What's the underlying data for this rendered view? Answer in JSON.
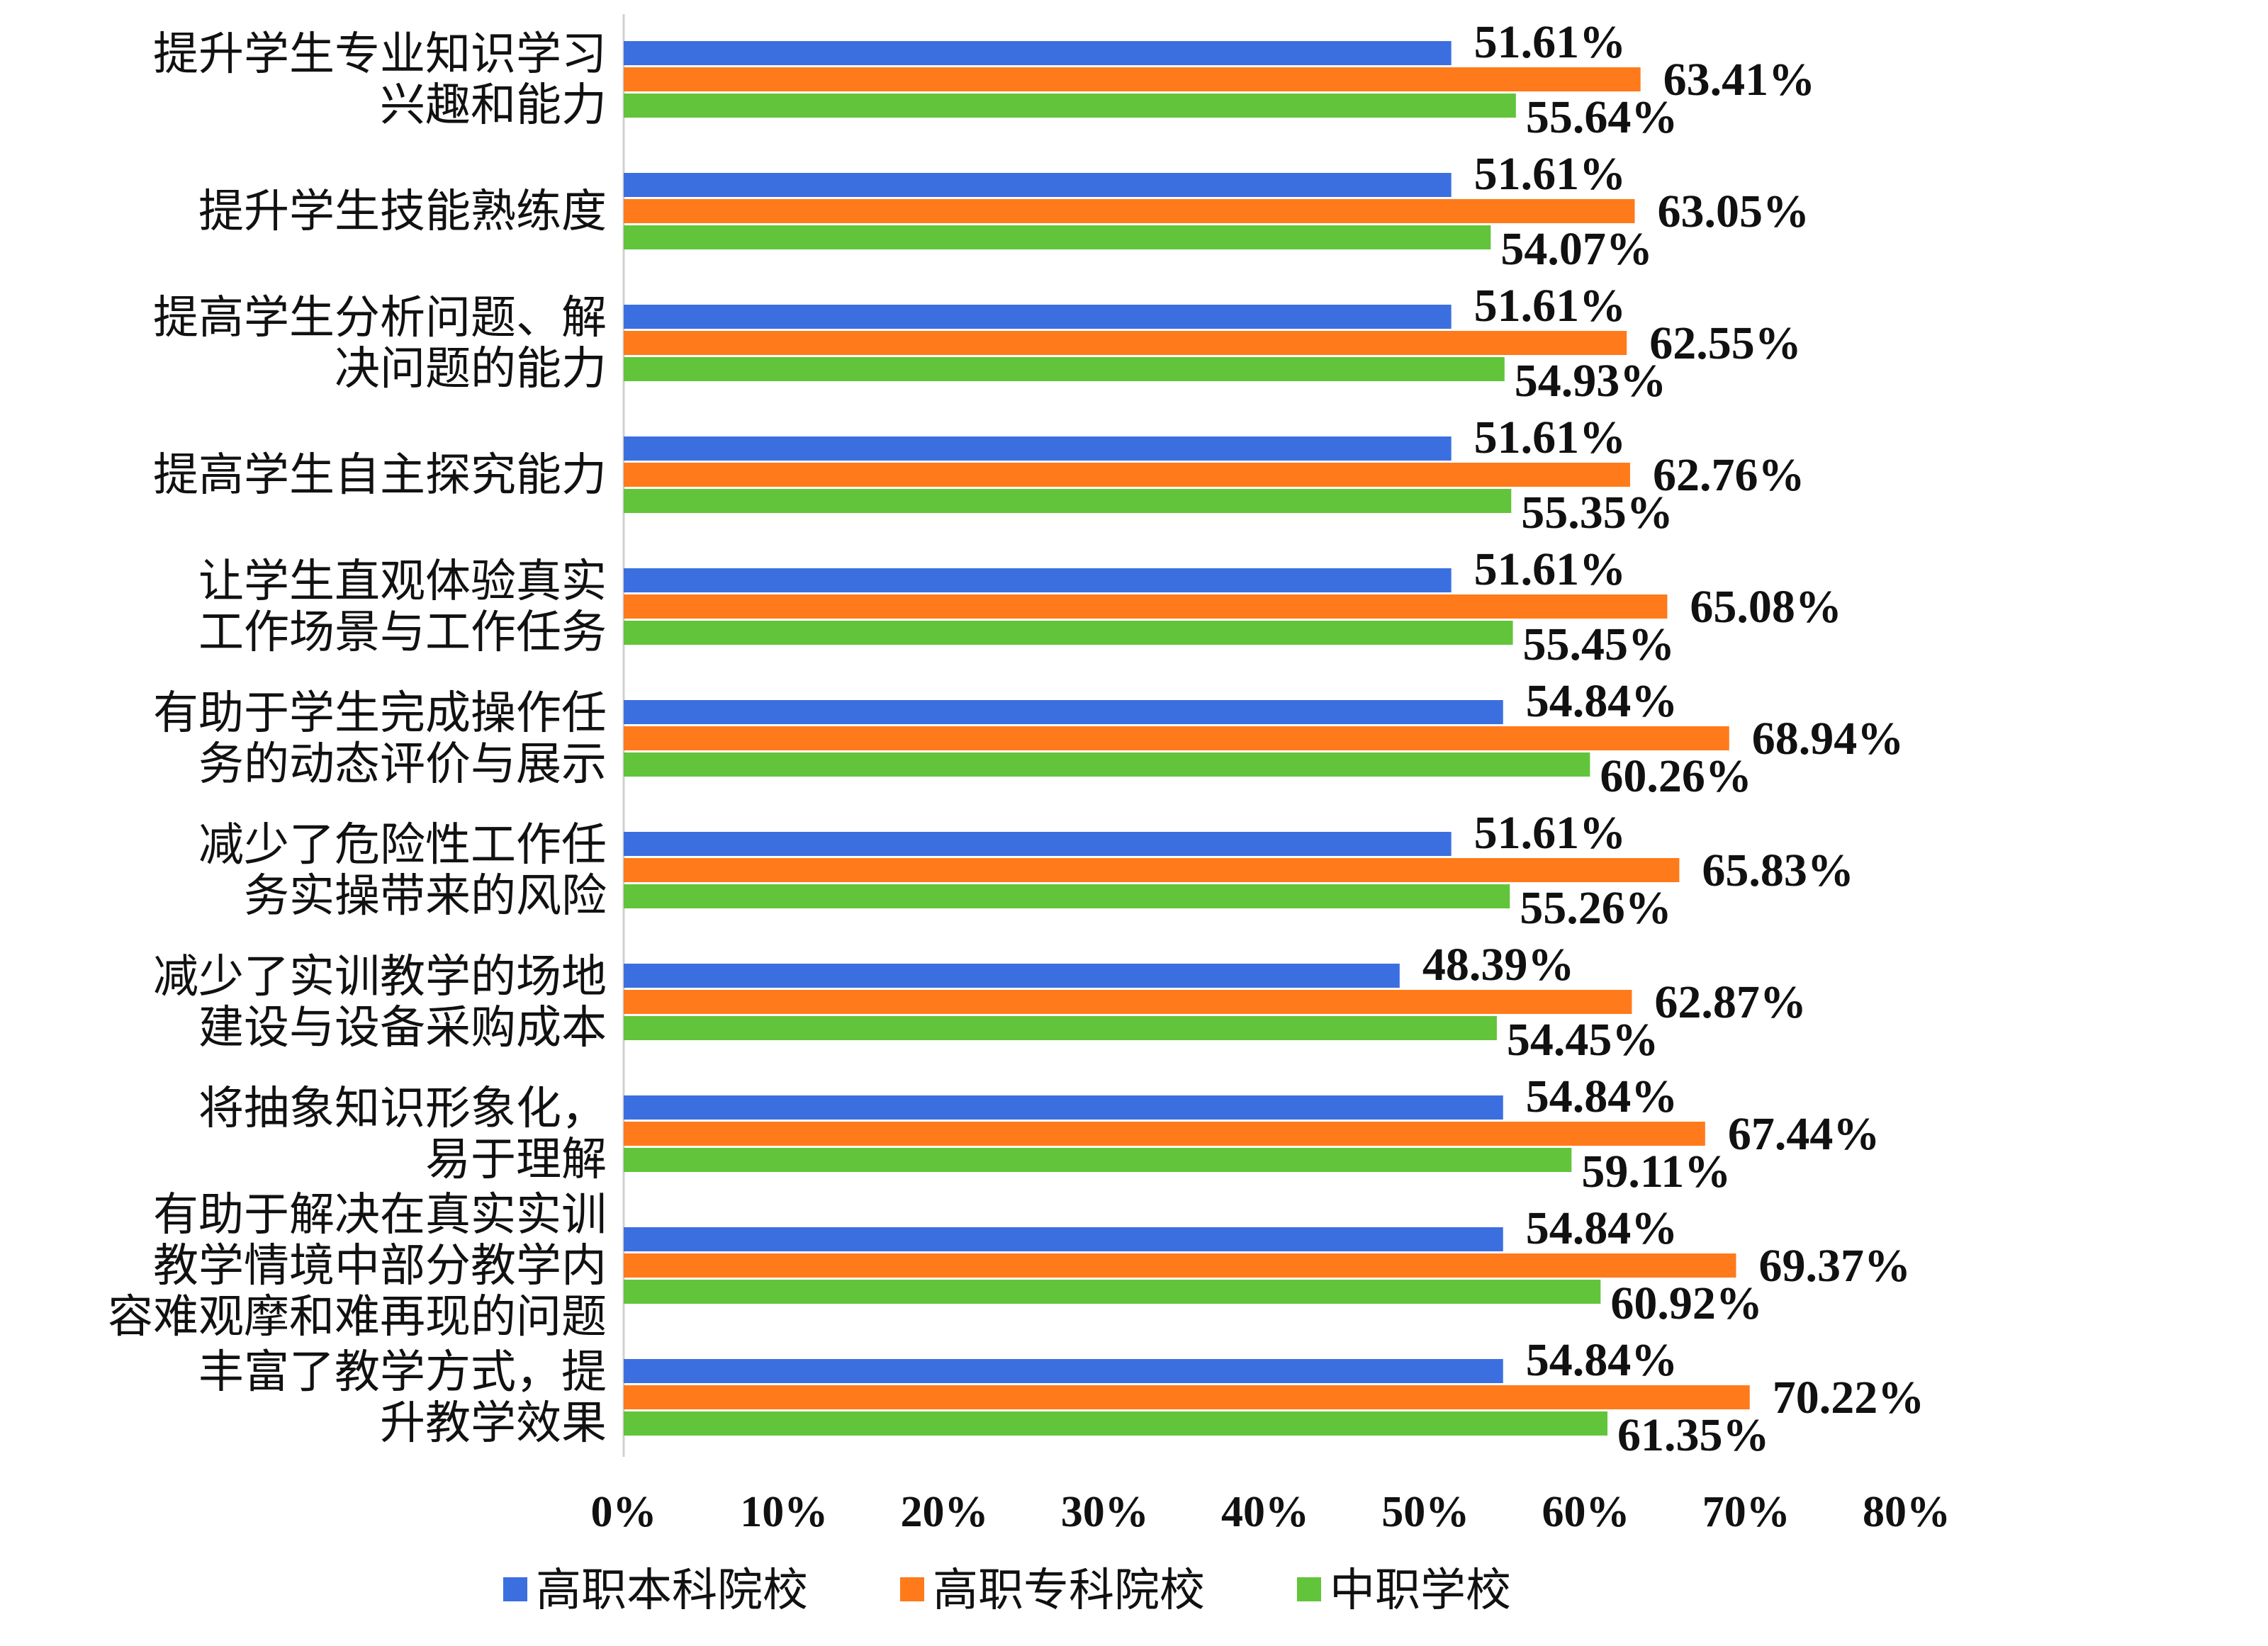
{
  "chart_data": {
    "type": "bar",
    "orientation": "horizontal",
    "categories": [
      [
        "提升学生专业知识学习",
        "兴趣和能力"
      ],
      [
        "提升学生技能熟练度"
      ],
      [
        "提高学生分析问题、解",
        "决问题的能力"
      ],
      [
        "提高学生自主探究能力"
      ],
      [
        "让学生直观体验真实",
        "工作场景与工作任务"
      ],
      [
        "有助于学生完成操作任",
        "务的动态评价与展示"
      ],
      [
        "减少了危险性工作任",
        "务实操带来的风险"
      ],
      [
        "减少了实训教学的场地",
        "建设与设备采购成本"
      ],
      [
        "将抽象知识形象化，",
        "易于理解"
      ],
      [
        "有助于解决在真实实训",
        "教学情境中部分教学内",
        "容难观摩和难再现的问题"
      ],
      [
        "丰富了教学方式，提",
        "升教学效果"
      ]
    ],
    "series": [
      {
        "name": "高职本科院校",
        "color": "#3b6fe0",
        "values": [
          51.61,
          51.61,
          51.61,
          51.61,
          51.61,
          54.84,
          51.61,
          48.39,
          54.84,
          54.84,
          54.84
        ],
        "labels": [
          "51.61%",
          "51.61%",
          "51.61%",
          "51.61%",
          "51.61%",
          "54.84%",
          "51.61%",
          "48.39%",
          "54.84%",
          "54.84%",
          "54.84%"
        ]
      },
      {
        "name": "高职专科院校",
        "color": "#ff7a1a",
        "values": [
          63.41,
          63.05,
          62.55,
          62.76,
          65.08,
          68.94,
          65.83,
          62.87,
          67.44,
          69.37,
          70.22
        ],
        "labels": [
          "63.41%",
          "63.05%",
          "62.55%",
          "62.76%",
          "65.08%",
          "68.94%",
          "65.83%",
          "62.87%",
          "67.44%",
          "69.37%",
          "70.22%"
        ]
      },
      {
        "name": "中职学校",
        "color": "#62c43a",
        "values": [
          55.64,
          54.07,
          54.93,
          55.35,
          55.45,
          60.26,
          55.26,
          54.45,
          59.11,
          60.92,
          61.35
        ],
        "labels": [
          "55.64%",
          "54.07%",
          "54.93%",
          "55.35%",
          "55.45%",
          "60.26%",
          "55.26%",
          "54.45%",
          "59.11%",
          "60.92%",
          "61.35%"
        ]
      }
    ],
    "xlim": [
      0,
      80
    ],
    "xticks": [
      0,
      10,
      20,
      30,
      40,
      50,
      60,
      70,
      80
    ],
    "xtick_labels": [
      "0%",
      "10%",
      "20%",
      "30%",
      "40%",
      "50%",
      "60%",
      "70%",
      "80%"
    ],
    "grid": false,
    "legend_position": "bottom"
  }
}
